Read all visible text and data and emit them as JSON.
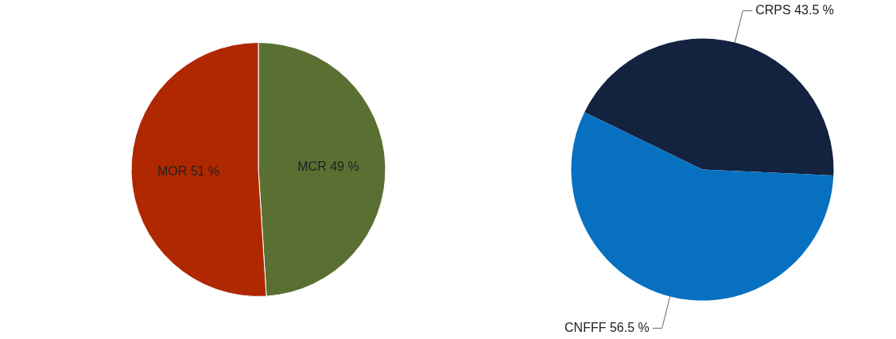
{
  "chart_data": [
    {
      "type": "pie",
      "categories": [
        "MCR",
        "MOR"
      ],
      "values": [
        49,
        51
      ],
      "colors": [
        "#5a7032",
        "#b02800"
      ],
      "value_labels": [
        "49 %",
        "51 %"
      ]
    },
    {
      "type": "pie",
      "categories": [
        "CRPS",
        "CNFFF"
      ],
      "values": [
        43.5,
        56.5
      ],
      "colors": [
        "#12223f",
        "#0870c0"
      ],
      "value_labels": [
        "43.5 %",
        "56.5 %"
      ]
    }
  ]
}
